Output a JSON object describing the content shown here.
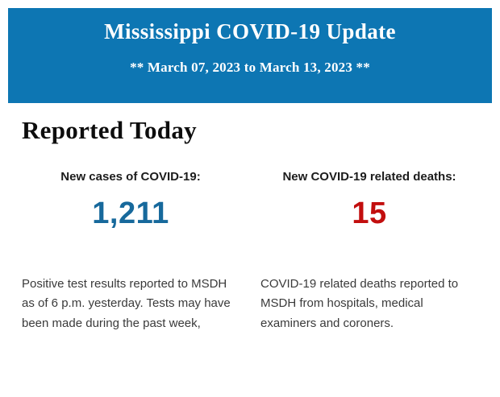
{
  "header": {
    "title": "Mississippi COVID-19 Update",
    "subtitle": "** March 07, 2023 to March 13, 2023 **",
    "background_color": "#0d76b3",
    "text_color": "#ffffff"
  },
  "section": {
    "heading": "Reported Today"
  },
  "stats": {
    "cases": {
      "label": "New cases of COVID-19:",
      "value": "1,211",
      "value_color": "#17699c",
      "description": "Positive test results reported to MSDH as of 6 p.m. yesterday. Tests may have been made during the past week,"
    },
    "deaths": {
      "label": "New COVID-19 related deaths:",
      "value": "15",
      "value_color": "#c20e0e",
      "description": "COVID-19 related deaths reported to MSDH from hospitals, medical examiners and coroners."
    }
  }
}
